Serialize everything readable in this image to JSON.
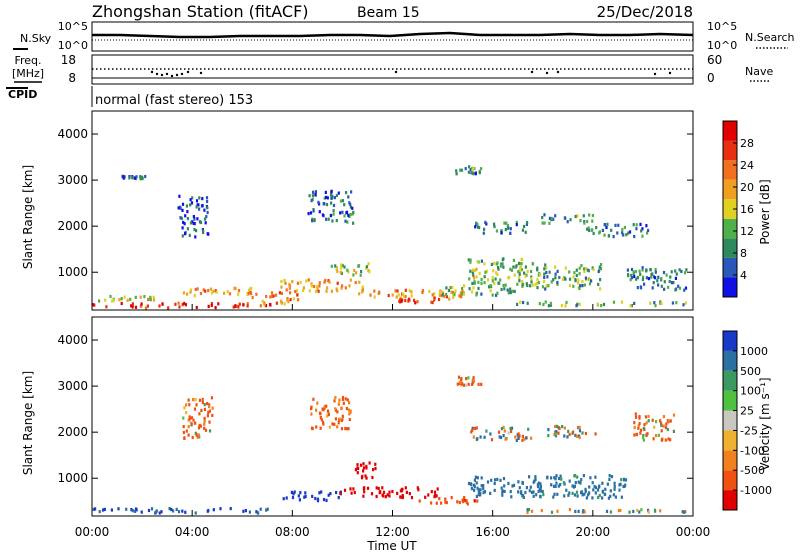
{
  "header": {
    "station_title": "Zhongshan Station (fitACF)",
    "beam_label": "Beam 15",
    "date": "25/Dec/2018"
  },
  "top_panels": {
    "nsky_label": "N.Sky",
    "nsky_ticks": [
      "10^5",
      "10^0"
    ],
    "nsearch_label": "N.Search",
    "nsearch_ticks": [
      "10^5",
      "10^0"
    ],
    "freq_label_line1": "Freq.",
    "freq_label_line2": "[MHz]",
    "freq_ticks": [
      "18",
      "8"
    ],
    "nave_label": "Nave",
    "nave_ticks": [
      "60",
      "0"
    ],
    "cpid_label": "CPID",
    "cpid_value": "normal (fast stereo) 153"
  },
  "chart_data": [
    {
      "type": "heatmap",
      "name": "power",
      "ylabel": "Slant Range [km]",
      "ylim": [
        180,
        4500
      ],
      "yticks": [
        "4000",
        "3000",
        "2000",
        "1000"
      ],
      "colorbar_label": "Power [dB]",
      "colorbar_ticks": [
        "28",
        "24",
        "20",
        "16",
        "12",
        "8",
        "4"
      ],
      "colors": [
        "#1010e6",
        "#2a58b8",
        "#2e8a5c",
        "#4fb04a",
        "#e0d020",
        "#f0a020",
        "#f07020",
        "#e83010",
        "#e00000"
      ],
      "blobs": [
        {
          "t": 3.5,
          "r": 270,
          "dt": 7.2,
          "dr": 110,
          "v": 26
        },
        {
          "t": 1.2,
          "r": 420,
          "dt": 2.6,
          "dr": 140,
          "v": 16
        },
        {
          "t": 5.0,
          "r": 560,
          "dt": 3.0,
          "dr": 170,
          "v": 20
        },
        {
          "t": 7.2,
          "r": 420,
          "dt": 2.0,
          "dr": 260,
          "v": 22
        },
        {
          "t": 9.2,
          "r": 700,
          "dt": 3.4,
          "dr": 260,
          "v": 20
        },
        {
          "t": 10.3,
          "r": 1050,
          "dt": 1.8,
          "dr": 250,
          "v": 14
        },
        {
          "t": 12.5,
          "r": 520,
          "dt": 4.8,
          "dr": 160,
          "v": 20
        },
        {
          "t": 13.4,
          "r": 380,
          "dt": 2.4,
          "dr": 120,
          "v": 24
        },
        {
          "t": 15.4,
          "r": 600,
          "dt": 3.0,
          "dr": 220,
          "v": 12
        },
        {
          "t": 16.3,
          "r": 1950,
          "dt": 2.2,
          "dr": 260,
          "v": 9
        },
        {
          "t": 16.1,
          "r": 1000,
          "dt": 2.2,
          "dr": 600,
          "v": 13
        },
        {
          "t": 19.0,
          "r": 2150,
          "dt": 2.2,
          "dr": 200,
          "v": 10
        },
        {
          "t": 18.6,
          "r": 900,
          "dt": 3.4,
          "dr": 550,
          "v": 12
        },
        {
          "t": 20.4,
          "r": 300,
          "dt": 7.0,
          "dr": 90,
          "v": 12
        },
        {
          "t": 21.0,
          "r": 1900,
          "dt": 2.6,
          "dr": 280,
          "v": 9
        },
        {
          "t": 22.5,
          "r": 850,
          "dt": 2.4,
          "dr": 500,
          "v": 9
        },
        {
          "t": 1.6,
          "r": 3050,
          "dt": 1.0,
          "dr": 60,
          "v": 6
        },
        {
          "t": 15.0,
          "r": 3200,
          "dt": 1.0,
          "dr": 160,
          "v": 10
        },
        {
          "t": 4.0,
          "r": 2200,
          "dt": 1.2,
          "dr": 900,
          "v": 6
        },
        {
          "t": 9.5,
          "r": 2400,
          "dt": 1.8,
          "dr": 700,
          "v": 7
        }
      ]
    },
    {
      "type": "heatmap",
      "name": "velocity",
      "ylabel": "Slant Range [km]",
      "ylim": [
        180,
        4500
      ],
      "yticks": [
        "4000",
        "3000",
        "2000",
        "1000"
      ],
      "colorbar_label": "Velocity [m s⁻¹]",
      "colorbar_ticks": [
        "1000",
        "500",
        "100",
        "25",
        "-25",
        "-100",
        "-500",
        "-1000"
      ],
      "colors": [
        "#e00000",
        "#f05010",
        "#f08020",
        "#f0b030",
        "#c8c8c0",
        "#50c040",
        "#3a9a60",
        "#2a70a0",
        "#1838c8"
      ],
      "xticks": [
        "00:00",
        "04:00",
        "08:00",
        "12:00",
        "16:00",
        "20:00",
        "00:00"
      ],
      "xlabel": "Time UT",
      "xlim": [
        0,
        24
      ],
      "blobs": [
        {
          "t": 3.5,
          "r": 280,
          "dt": 7.4,
          "dr": 110,
          "v": 200
        },
        {
          "t": 8.8,
          "r": 600,
          "dt": 2.4,
          "dr": 200,
          "v": 300
        },
        {
          "t": 11.8,
          "r": 680,
          "dt": 4.0,
          "dr": 220,
          "v": -350
        },
        {
          "t": 10.9,
          "r": 1150,
          "dt": 1.0,
          "dr": 350,
          "v": -300
        },
        {
          "t": 14.2,
          "r": 500,
          "dt": 2.4,
          "dr": 160,
          "v": -150
        },
        {
          "t": 16.3,
          "r": 1950,
          "dt": 2.4,
          "dr": 300,
          "v": 5
        },
        {
          "t": 19.2,
          "r": 2000,
          "dt": 2.2,
          "dr": 250,
          "v": 5
        },
        {
          "t": 16.5,
          "r": 800,
          "dt": 3.0,
          "dr": 450,
          "v": 120
        },
        {
          "t": 19.5,
          "r": 800,
          "dt": 3.6,
          "dr": 500,
          "v": 110
        },
        {
          "t": 20.5,
          "r": 280,
          "dt": 7.0,
          "dr": 80,
          "v": 40
        },
        {
          "t": 15.0,
          "r": 3100,
          "dt": 1.0,
          "dr": 180,
          "v": -60
        },
        {
          "t": 9.5,
          "r": 2400,
          "dt": 1.6,
          "dr": 700,
          "v": -80
        },
        {
          "t": 22.4,
          "r": 2100,
          "dt": 1.6,
          "dr": 600,
          "v": -60
        },
        {
          "t": 4.2,
          "r": 2300,
          "dt": 1.2,
          "dr": 900,
          "v": -50
        }
      ]
    }
  ]
}
